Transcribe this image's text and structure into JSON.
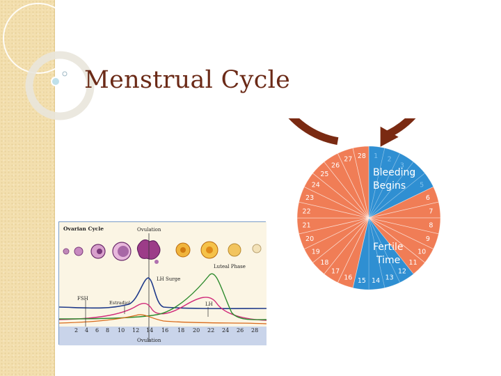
{
  "slide": {
    "title": "Menstrual Cycle"
  },
  "ovarian_figure": {
    "section_label": "Ovarian Cycle",
    "ovulation_top_label": "Ovulation",
    "lh_surge_label": "LH Surge",
    "luteal_label": "Luteal Phase",
    "fsh_label": "FSH",
    "estradiol_label": "Estradiol",
    "lh_label": "LH",
    "day_ticks": [
      "2",
      "4",
      "6",
      "8",
      "10",
      "12",
      "14",
      "16",
      "18",
      "20",
      "22",
      "24",
      "26",
      "28"
    ],
    "ovulation_bottom_label": "Ovulation",
    "colors": {
      "fsh": "#1f3a8a",
      "estradiol": "#d02a7a",
      "lh": "#2e8b2e",
      "progesterone": "#d96a1c"
    }
  },
  "cycle_wheel": {
    "bleeding_label_line1": "Bleeding",
    "bleeding_label_line2": "Begins",
    "fertile_label_line1": "Fertile",
    "fertile_label_line2": "Time",
    "days": [
      "1",
      "2",
      "3",
      "4",
      "5",
      "6",
      "7",
      "8",
      "9",
      "10",
      "11",
      "12",
      "13",
      "14",
      "15",
      "16",
      "17",
      "18",
      "19",
      "20",
      "21",
      "22",
      "23",
      "24",
      "25",
      "26",
      "27",
      "28"
    ],
    "blue_days": [
      "1",
      "2",
      "3",
      "4",
      "5",
      "12",
      "13",
      "14",
      "15"
    ],
    "colors": {
      "salmon": "#f07d56",
      "blue": "#2f8fd2",
      "ring": "#7a2a12"
    }
  }
}
